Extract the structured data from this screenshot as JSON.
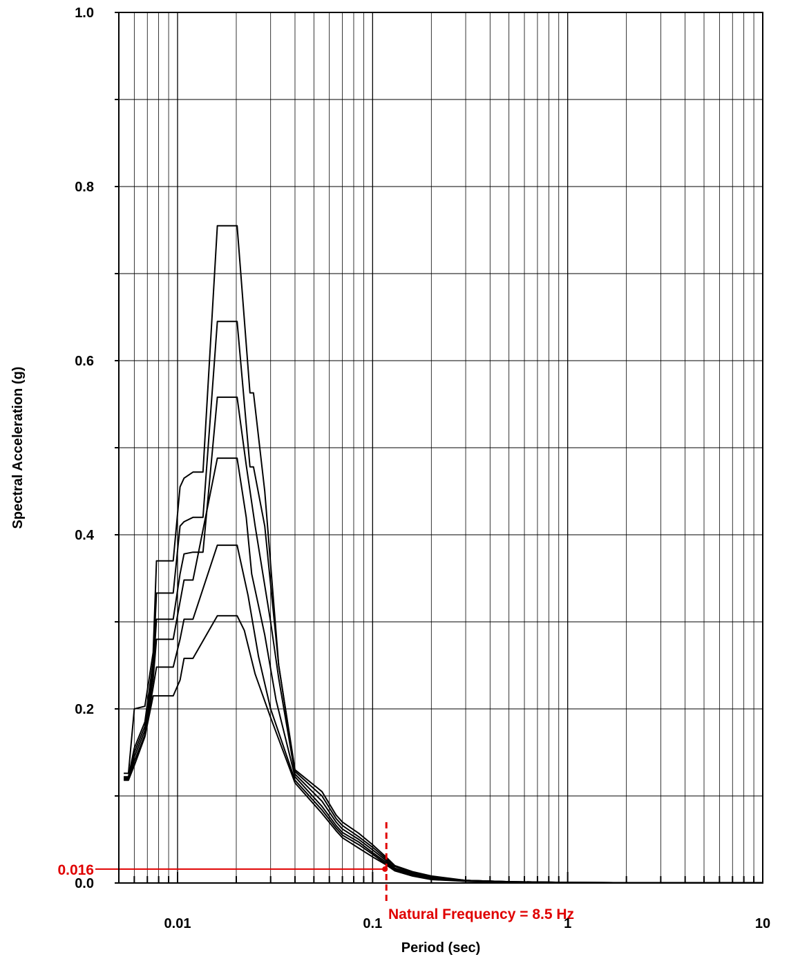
{
  "chart_data": {
    "type": "line",
    "title": "",
    "xlabel": "Period (sec)",
    "ylabel": "Spectral Acceleration (g)",
    "x_scale": "log",
    "xlim": [
      0.005,
      10
    ],
    "ylim": [
      0,
      1.0
    ],
    "x_ticks": [
      {
        "value": 0.01,
        "label": "0.01"
      },
      {
        "value": 0.1,
        "label": "0.1"
      },
      {
        "value": 1,
        "label": "1"
      },
      {
        "value": 10,
        "label": "10"
      }
    ],
    "y_ticks": [
      {
        "value": 0.0,
        "label": "0.0"
      },
      {
        "value": 0.2,
        "label": "0.2"
      },
      {
        "value": 0.4,
        "label": "0.4"
      },
      {
        "value": 0.6,
        "label": "0.6"
      },
      {
        "value": 0.8,
        "label": "0.8"
      },
      {
        "value": 1.0,
        "label": "1.0"
      }
    ],
    "grid": true,
    "legend": "none",
    "series": [
      {
        "x": [
          0.0053,
          0.0056,
          0.006,
          0.0068,
          0.0075,
          0.0085,
          0.0095,
          0.0103,
          0.0108,
          0.012,
          0.016,
          0.0202,
          0.022,
          0.025,
          0.03,
          0.04,
          0.055,
          0.065,
          0.07,
          0.085,
          0.1,
          0.117,
          0.13,
          0.16,
          0.2,
          0.3,
          0.5,
          1,
          2,
          5,
          10
        ],
        "y": [
          0.118,
          0.118,
          0.135,
          0.168,
          0.215,
          0.215,
          0.215,
          0.233,
          0.258,
          0.258,
          0.307,
          0.307,
          0.29,
          0.24,
          0.19,
          0.115,
          0.08,
          0.06,
          0.052,
          0.04,
          0.03,
          0.021,
          0.014,
          0.008,
          0.004,
          0.002,
          0.001,
          0.0005,
          0.0003,
          0.0002,
          0.0002
        ]
      },
      {
        "x": [
          0.0053,
          0.0056,
          0.006,
          0.0068,
          0.0075,
          0.0078,
          0.0095,
          0.0103,
          0.0108,
          0.012,
          0.016,
          0.0202,
          0.023,
          0.026,
          0.03,
          0.04,
          0.055,
          0.065,
          0.07,
          0.085,
          0.1,
          0.117,
          0.13,
          0.16,
          0.2,
          0.3,
          0.5,
          1,
          2,
          5,
          10
        ],
        "y": [
          0.119,
          0.119,
          0.14,
          0.17,
          0.225,
          0.248,
          0.248,
          0.28,
          0.303,
          0.303,
          0.388,
          0.388,
          0.33,
          0.26,
          0.2,
          0.118,
          0.084,
          0.063,
          0.055,
          0.044,
          0.033,
          0.022,
          0.015,
          0.009,
          0.005,
          0.002,
          0.001,
          0.0005,
          0.0003,
          0.0002,
          0.0002
        ]
      },
      {
        "x": [
          0.0053,
          0.0056,
          0.006,
          0.0068,
          0.0075,
          0.0078,
          0.0095,
          0.0103,
          0.0108,
          0.012,
          0.016,
          0.0202,
          0.0225,
          0.024,
          0.028,
          0.032,
          0.04,
          0.055,
          0.065,
          0.07,
          0.085,
          0.1,
          0.117,
          0.13,
          0.16,
          0.2,
          0.3,
          0.5,
          1,
          2,
          5,
          10
        ],
        "y": [
          0.12,
          0.12,
          0.145,
          0.175,
          0.235,
          0.28,
          0.28,
          0.323,
          0.348,
          0.348,
          0.488,
          0.488,
          0.42,
          0.355,
          0.285,
          0.21,
          0.122,
          0.088,
          0.066,
          0.058,
          0.047,
          0.035,
          0.024,
          0.016,
          0.01,
          0.006,
          0.003,
          0.0015,
          0.0006,
          0.0003,
          0.0002,
          0.0002
        ]
      },
      {
        "x": [
          0.0053,
          0.0056,
          0.006,
          0.0068,
          0.0075,
          0.0078,
          0.0095,
          0.0103,
          0.0108,
          0.012,
          0.0135,
          0.016,
          0.0202,
          0.0225,
          0.025,
          0.03,
          0.033,
          0.04,
          0.055,
          0.065,
          0.07,
          0.085,
          0.1,
          0.117,
          0.13,
          0.16,
          0.2,
          0.3,
          0.5,
          1,
          2,
          5,
          10
        ],
        "y": [
          0.121,
          0.121,
          0.15,
          0.18,
          0.245,
          0.303,
          0.303,
          0.355,
          0.378,
          0.38,
          0.38,
          0.558,
          0.558,
          0.48,
          0.41,
          0.3,
          0.235,
          0.125,
          0.094,
          0.07,
          0.062,
          0.05,
          0.038,
          0.026,
          0.017,
          0.011,
          0.006,
          0.003,
          0.0015,
          0.0006,
          0.0003,
          0.0002,
          0.0002
        ]
      },
      {
        "x": [
          0.0053,
          0.0056,
          0.006,
          0.0068,
          0.0075,
          0.0078,
          0.0095,
          0.0103,
          0.0108,
          0.012,
          0.0135,
          0.016,
          0.0202,
          0.0235,
          0.0245,
          0.028,
          0.033,
          0.04,
          0.055,
          0.065,
          0.07,
          0.085,
          0.1,
          0.117,
          0.13,
          0.16,
          0.2,
          0.3,
          0.5,
          1,
          2,
          5,
          10
        ],
        "y": [
          0.122,
          0.122,
          0.155,
          0.185,
          0.255,
          0.333,
          0.333,
          0.41,
          0.415,
          0.42,
          0.42,
          0.645,
          0.645,
          0.478,
          0.478,
          0.41,
          0.25,
          0.128,
          0.1,
          0.074,
          0.066,
          0.053,
          0.041,
          0.028,
          0.019,
          0.012,
          0.007,
          0.003,
          0.0015,
          0.0006,
          0.0003,
          0.0002,
          0.0002
        ]
      },
      {
        "x": [
          0.0053,
          0.0056,
          0.006,
          0.0068,
          0.0075,
          0.0078,
          0.0095,
          0.0103,
          0.0108,
          0.012,
          0.0135,
          0.016,
          0.0202,
          0.0235,
          0.0245,
          0.028,
          0.033,
          0.04,
          0.055,
          0.065,
          0.07,
          0.085,
          0.1,
          0.117,
          0.13,
          0.16,
          0.2,
          0.3,
          0.5,
          1,
          2,
          5,
          10
        ],
        "y": [
          0.126,
          0.126,
          0.2,
          0.203,
          0.265,
          0.37,
          0.37,
          0.455,
          0.465,
          0.472,
          0.472,
          0.755,
          0.755,
          0.563,
          0.563,
          0.45,
          0.25,
          0.13,
          0.105,
          0.078,
          0.07,
          0.057,
          0.044,
          0.03,
          0.02,
          0.013,
          0.008,
          0.003,
          0.0015,
          0.0006,
          0.0003,
          0.0002,
          0.0002
        ]
      }
    ],
    "annotations": {
      "hline_value": 0.016,
      "hline_label": "0.016",
      "vline_period": 0.1176,
      "vline_label": "Natural Frequency = 8.5 Hz",
      "color": "#e00000"
    }
  }
}
